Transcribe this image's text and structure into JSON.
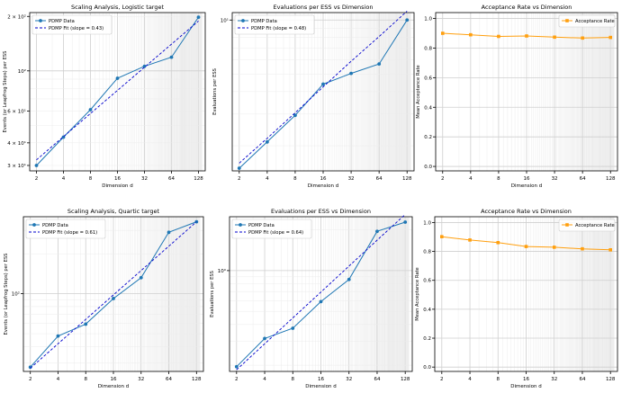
{
  "colors": {
    "pdmp": "#1f77b4",
    "fit": "#0000cd",
    "acceptance": "#ff9f0e",
    "grid": "#d9d9d9",
    "axis": "#000000"
  },
  "chart_data": [
    {
      "type": "line",
      "scale": "loglog",
      "title": "Scaling Analysis, Logistic target",
      "xlabel": "Dimension d",
      "ylabel": "Events (or Leapfrog Steps) per ESS",
      "x": [
        2,
        4,
        8,
        16,
        32,
        64,
        128
      ],
      "xticks": [
        "2",
        "4",
        "8",
        "16",
        "32",
        "64",
        "128"
      ],
      "yticks": [
        {
          "v": 30,
          "label": "3 × 10¹"
        },
        {
          "v": 40,
          "label": "4 × 10¹"
        },
        {
          "v": 60,
          "label": "6 × 10¹"
        },
        {
          "v": 100,
          "label": "10²"
        },
        {
          "v": 200,
          "label": "2 × 10²"
        }
      ],
      "ylim": [
        28,
        210
      ],
      "series": [
        {
          "name": "PDMP Data",
          "role": "data",
          "values": [
            30,
            43,
            61,
            91,
            106,
            119,
            198
          ]
        },
        {
          "name": "PDMP Fit (slope = 0.43)",
          "role": "fit",
          "values": [
            32.2,
            43.3,
            58.1,
            78.0,
            104.7,
            140.5,
            188.6
          ]
        }
      ],
      "legend": "top-left",
      "grid": true
    },
    {
      "type": "line",
      "scale": "loglog",
      "title": "Evaluations per ESS vs Dimension",
      "xlabel": "Dimension d",
      "ylabel": "Evaluations per ESS",
      "x": [
        2,
        4,
        8,
        16,
        32,
        64,
        128
      ],
      "xticks": [
        "2",
        "4",
        "8",
        "16",
        "32",
        "64",
        "128"
      ],
      "yticks": [
        {
          "v": 10,
          "label": "10¹"
        }
      ],
      "ylim": [
        1.45,
        11
      ],
      "series": [
        {
          "name": "PDMP Data",
          "role": "data",
          "values": [
            1.5,
            2.1,
            2.95,
            4.4,
            5.05,
            5.7,
            10.0
          ]
        },
        {
          "name": "PDMP Fit (slope = 0.48)",
          "role": "fit",
          "values": [
            1.6,
            2.2,
            3.05,
            4.25,
            5.9,
            8.1,
            11.2
          ]
        }
      ],
      "legend": "top-left",
      "grid": true
    },
    {
      "type": "line",
      "scale": "semilogx",
      "title": "Acceptance Rate vs Dimension",
      "xlabel": "Dimension d",
      "ylabel": "Mean Acceptance Rate",
      "x": [
        2,
        4,
        8,
        16,
        32,
        64,
        128
      ],
      "xticks": [
        "2",
        "4",
        "8",
        "16",
        "32",
        "64",
        "128"
      ],
      "yticks": [
        {
          "v": 0.0,
          "label": "0.0"
        },
        {
          "v": 0.2,
          "label": "0.2"
        },
        {
          "v": 0.4,
          "label": "0.4"
        },
        {
          "v": 0.6,
          "label": "0.6"
        },
        {
          "v": 0.8,
          "label": "0.8"
        },
        {
          "v": 1.0,
          "label": "1.0"
        }
      ],
      "ylim": [
        -0.03,
        1.04
      ],
      "series": [
        {
          "name": "Acceptance Rate",
          "role": "accept",
          "values": [
            0.9,
            0.89,
            0.879,
            0.882,
            0.874,
            0.868,
            0.872
          ]
        }
      ],
      "legend": "top-right",
      "grid": true
    },
    {
      "type": "line",
      "scale": "loglog",
      "title": "Scaling Analysis, Quartic target",
      "xlabel": "Dimension d",
      "ylabel": "Events (or Leapfrog Steps) per ESS",
      "x": [
        2,
        4,
        8,
        16,
        32,
        64,
        128
      ],
      "xticks": [
        "2",
        "4",
        "8",
        "16",
        "32",
        "64",
        "128"
      ],
      "yticks": [
        {
          "v": 100,
          "label": "10²"
        }
      ],
      "ylim": [
        26,
        380
      ],
      "series": [
        {
          "name": "PDMP Data",
          "role": "data",
          "values": [
            28,
            48,
            59,
            92,
            132,
            290,
            348
          ]
        },
        {
          "name": "PDMP Fit (slope = 0.61)",
          "role": "fit",
          "values": [
            27.5,
            42.0,
            64.0,
            98.0,
            149.5,
            228.0,
            348.0
          ]
        }
      ],
      "legend": "top-left",
      "grid": true
    },
    {
      "type": "line",
      "scale": "loglog",
      "title": "Evaluations per ESS vs Dimension",
      "xlabel": "Dimension d",
      "ylabel": "Evaluations per ESS",
      "x": [
        2,
        4,
        8,
        16,
        32,
        64,
        128
      ],
      "xticks": [
        "2",
        "4",
        "8",
        "16",
        "32",
        "64",
        "128"
      ],
      "yticks": [
        {
          "v": 1,
          "label": "10⁰"
        }
      ],
      "ylim": [
        0.18,
        2.5
      ],
      "series": [
        {
          "name": "PDMP Data",
          "role": "data",
          "values": [
            0.195,
            0.315,
            0.375,
            0.59,
            0.86,
            1.95,
            2.28
          ]
        },
        {
          "name": "PDMP Fit (slope = 0.64)",
          "role": "fit",
          "values": [
            0.185,
            0.288,
            0.447,
            0.694,
            1.08,
            1.68,
            2.6
          ]
        }
      ],
      "legend": "top-left",
      "grid": true
    },
    {
      "type": "line",
      "scale": "semilogx",
      "title": "Acceptance Rate vs Dimension",
      "xlabel": "Dimension d",
      "ylabel": "Mean Acceptance Rate",
      "x": [
        2,
        4,
        8,
        16,
        32,
        64,
        128
      ],
      "xticks": [
        "2",
        "4",
        "8",
        "16",
        "32",
        "64",
        "128"
      ],
      "yticks": [
        {
          "v": 0.0,
          "label": "0.0"
        },
        {
          "v": 0.2,
          "label": "0.2"
        },
        {
          "v": 0.4,
          "label": "0.4"
        },
        {
          "v": 0.6,
          "label": "0.6"
        },
        {
          "v": 0.8,
          "label": "0.8"
        },
        {
          "v": 1.0,
          "label": "1.0"
        }
      ],
      "ylim": [
        -0.03,
        1.04
      ],
      "series": [
        {
          "name": "Acceptance Rate",
          "role": "accept",
          "values": [
            0.902,
            0.879,
            0.861,
            0.834,
            0.829,
            0.818,
            0.811
          ]
        }
      ],
      "legend": "top-right",
      "grid": true
    }
  ]
}
